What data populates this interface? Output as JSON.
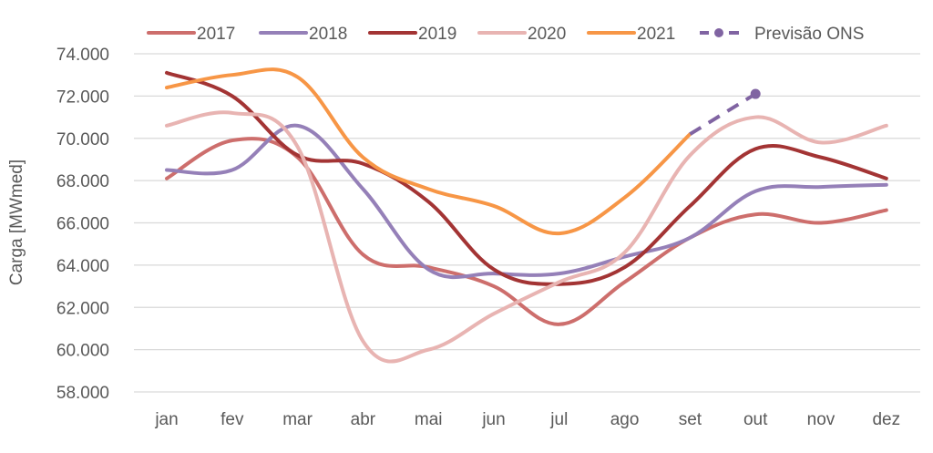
{
  "chart_data": {
    "type": "line",
    "title": "",
    "xlabel": "",
    "ylabel": "Carga [MWmed]",
    "ylim": [
      58000,
      74000
    ],
    "yticks": [
      58000,
      60000,
      62000,
      64000,
      66000,
      68000,
      70000,
      72000,
      74000
    ],
    "ytick_labels": [
      "58.000",
      "60.000",
      "62.000",
      "64.000",
      "66.000",
      "68.000",
      "70.000",
      "72.000",
      "74.000"
    ],
    "grid": true,
    "legend_position": "top",
    "categories": [
      "jan",
      "fev",
      "mar",
      "abr",
      "mai",
      "jun",
      "jul",
      "ago",
      "set",
      "out",
      "nov",
      "dez"
    ],
    "series": [
      {
        "name": "2017",
        "color": "#cd6e6c",
        "style": "solid",
        "values": [
          68100,
          69900,
          69100,
          64500,
          63900,
          63000,
          61200,
          63200,
          65300,
          66400,
          66000,
          66600
        ]
      },
      {
        "name": "2018",
        "color": "#9580b8",
        "style": "solid",
        "values": [
          68500,
          68500,
          70600,
          67600,
          63800,
          63600,
          63600,
          64400,
          65300,
          67500,
          67700,
          67800
        ]
      },
      {
        "name": "2019",
        "color": "#a33434",
        "style": "solid",
        "values": [
          73100,
          72000,
          69200,
          68800,
          67000,
          63800,
          63100,
          63900,
          66800,
          69500,
          69100,
          68100
        ]
      },
      {
        "name": "2020",
        "color": "#e8b4b2",
        "style": "solid",
        "values": [
          70600,
          71200,
          69600,
          60400,
          60000,
          61700,
          63200,
          64600,
          69200,
          71000,
          69800,
          70600
        ]
      },
      {
        "name": "2021",
        "color": "#f79646",
        "style": "solid",
        "values": [
          72400,
          73000,
          72900,
          69100,
          67600,
          66800,
          65500,
          67200,
          70200,
          null,
          null,
          null
        ]
      },
      {
        "name": "Previsão ONS",
        "color": "#8064a2",
        "style": "dashed",
        "marker": "circle-at-end",
        "values": [
          null,
          null,
          null,
          null,
          null,
          null,
          null,
          null,
          70200,
          72100,
          null,
          null
        ]
      }
    ]
  }
}
